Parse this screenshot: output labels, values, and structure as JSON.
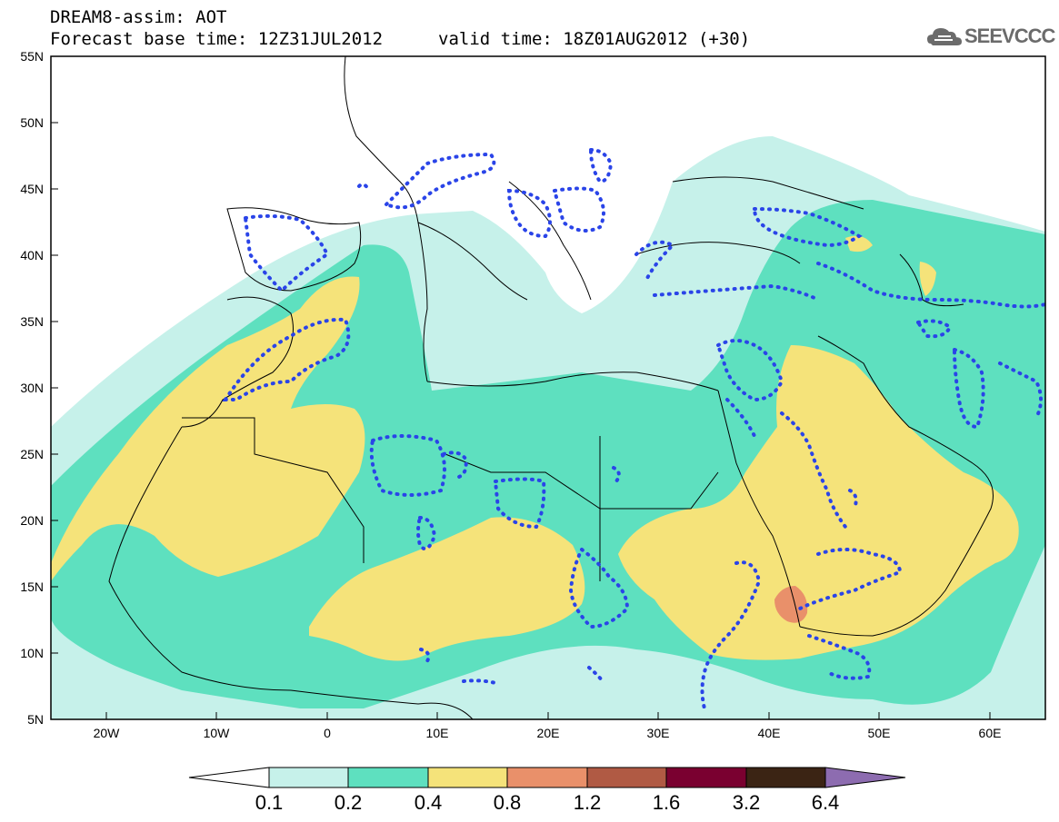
{
  "header": {
    "line1": "DREAM8-assim: AOT",
    "line2": "Forecast base time: 12Z31JUL2012",
    "line3": "valid time: 18Z01AUG2012 (+30)"
  },
  "logo": {
    "text": "SEEVCCC",
    "icon": "cloud-icon"
  },
  "map": {
    "lat_labels": [
      "55N",
      "50N",
      "45N",
      "40N",
      "35N",
      "30N",
      "25N",
      "20N",
      "15N",
      "10N",
      "5N"
    ],
    "lon_labels": [
      "20W",
      "10W",
      "0",
      "10E",
      "20E",
      "30E",
      "40E",
      "50E",
      "60E"
    ],
    "lon_range": [
      -25,
      65
    ],
    "lat_range": [
      5,
      55
    ]
  },
  "colorbar": {
    "labels": [
      "0.1",
      "0.2",
      "0.4",
      "0.8",
      "1.2",
      "1.6",
      "3.2",
      "6.4"
    ],
    "colors": [
      "#ffffff",
      "#c6f1ea",
      "#5ee0bf",
      "#f5e37a",
      "#e9906a",
      "#b05a44",
      "#7a0030",
      "#3b2414",
      "#8d6cb0"
    ]
  },
  "legend_colors": {
    "c01": "#c6f1ea",
    "c02": "#5ee0bf",
    "c04": "#f5e37a",
    "c08": "#e9906a",
    "contour": "#2a44e8"
  }
}
